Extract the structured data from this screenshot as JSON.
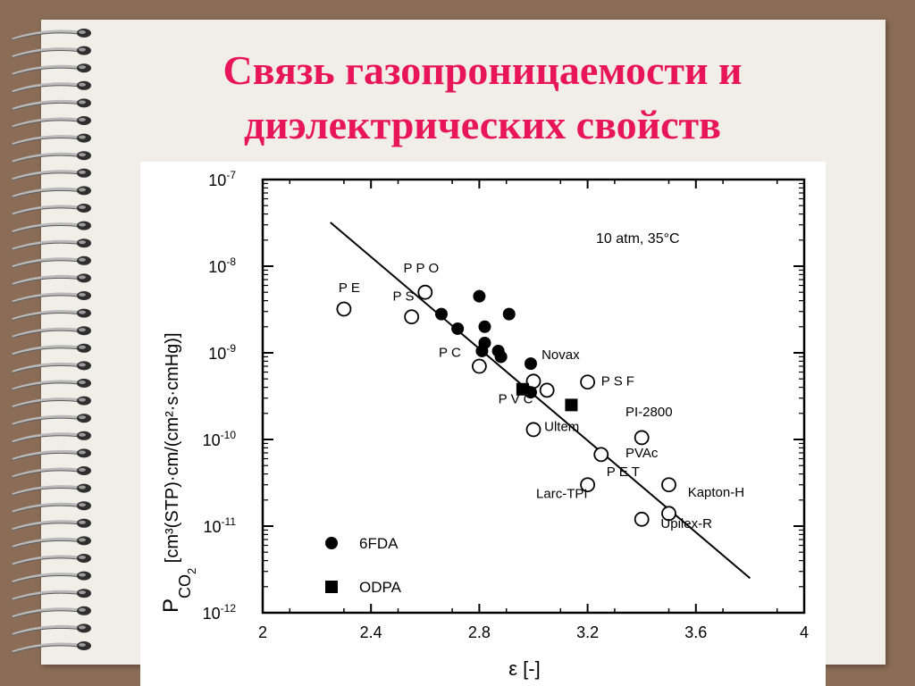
{
  "slide": {
    "title_line1": "Связь газопроницаемости и",
    "title_line2": "диэлектрических свойств",
    "accent_color": "#e8155a",
    "background_color": "#8b6d57",
    "decoration": "spiral-binding"
  },
  "chart_data": {
    "type": "scatter",
    "xlabel": "ε [-]",
    "ylabel_parts": {
      "symbol": "P",
      "subscript": "CO",
      "sub2": "2",
      "units": "[cm³(STP)·cm/(cm²·s·cmHg)]"
    },
    "x_ticks": [
      "2",
      "2.4",
      "2.8",
      "3.2",
      "3.6",
      "4"
    ],
    "x_tick_values": [
      2,
      2.4,
      2.8,
      3.2,
      3.6,
      4
    ],
    "y_ticks": [
      {
        "mantissa": "10",
        "exp": "-7",
        "value": -7
      },
      {
        "mantissa": "10",
        "exp": "-8",
        "value": -8
      },
      {
        "mantissa": "10",
        "exp": "-9",
        "value": -9
      },
      {
        "mantissa": "10",
        "exp": "-10",
        "value": -10
      },
      {
        "mantissa": "10",
        "exp": "-11",
        "value": -11
      },
      {
        "mantissa": "10",
        "exp": "-12",
        "value": -12
      }
    ],
    "xlim": [
      2,
      4
    ],
    "ylim_log10": [
      -12,
      -7
    ],
    "y_scale": "log",
    "condition_label": "10 atm, 35°C",
    "legend": [
      {
        "name": "6FDA",
        "marker": "filled-circle"
      },
      {
        "name": "ODPA",
        "marker": "filled-square"
      }
    ],
    "legend_position": "bottom-left",
    "trend_line": [
      {
        "x": 2.25,
        "y": 3.2e-08
      },
      {
        "x": 3.8,
        "y": 2.5e-12
      }
    ],
    "series": [
      {
        "name": "",
        "marker": "open-circle",
        "points": [
          {
            "x": 2.3,
            "y": 3.2e-09,
            "label": "PE"
          },
          {
            "x": 2.55,
            "y": 2.6e-09,
            "label": "PS"
          },
          {
            "x": 2.6,
            "y": 5e-09,
            "label": "PPO"
          },
          {
            "x": 2.8,
            "y": 7e-10,
            "label": "PC"
          },
          {
            "x": 3.0,
            "y": 4.7e-10,
            "label": ""
          },
          {
            "x": 3.05,
            "y": 3.7e-10,
            "label": ""
          },
          {
            "x": 3.2,
            "y": 4.6e-10,
            "label": "PSF"
          },
          {
            "x": 3.0,
            "y": 1.3e-10,
            "label": "Ultem"
          },
          {
            "x": 3.4,
            "y": 1.05e-10,
            "label": "PI-2800"
          },
          {
            "x": 3.25,
            "y": 6.7e-11,
            "label": "PVAc"
          },
          {
            "x": 3.2,
            "y": 3e-11,
            "label": "Larc-TPI"
          },
          {
            "x": 3.5,
            "y": 3e-11,
            "label": "Kapton-H"
          },
          {
            "x": 3.5,
            "y": 1.4e-11,
            "label": "Upilex-R"
          },
          {
            "x": 3.4,
            "y": 1.2e-11,
            "label": ""
          }
        ]
      },
      {
        "name": "6FDA",
        "marker": "filled-circle",
        "points": [
          {
            "x": 2.8,
            "y": 4.5e-09
          },
          {
            "x": 2.66,
            "y": 2.8e-09
          },
          {
            "x": 2.72,
            "y": 1.9e-09
          },
          {
            "x": 2.82,
            "y": 2e-09
          },
          {
            "x": 2.82,
            "y": 1.3e-09
          },
          {
            "x": 2.81,
            "y": 1.05e-09
          },
          {
            "x": 2.87,
            "y": 1.05e-09
          },
          {
            "x": 2.88,
            "y": 9e-10
          },
          {
            "x": 2.91,
            "y": 2.8e-09
          },
          {
            "x": 2.99,
            "y": 7.5e-10
          },
          {
            "x": 2.99,
            "y": 3.5e-10
          }
        ]
      },
      {
        "name": "ODPA",
        "marker": "filled-square",
        "points": [
          {
            "x": 2.96,
            "y": 3.8e-10
          },
          {
            "x": 3.14,
            "y": 2.5e-10
          }
        ]
      }
    ],
    "text_labels": [
      {
        "text": "PE",
        "x": 2.28,
        "y": 5e-09
      },
      {
        "text": "PS",
        "x": 2.48,
        "y": 4e-09
      },
      {
        "text": "PPO",
        "x": 2.52,
        "y": 8.5e-09
      },
      {
        "text": "PC",
        "x": 2.65,
        "y": 9e-10
      },
      {
        "text": "Novax",
        "x": 3.03,
        "y": 8.5e-10
      },
      {
        "text": "PSF",
        "x": 3.25,
        "y": 4.2e-10
      },
      {
        "text": "PVC",
        "x": 2.87,
        "y": 2.6e-10
      },
      {
        "text": "Ultem",
        "x": 3.04,
        "y": 1.25e-10
      },
      {
        "text": "PI-2800",
        "x": 3.34,
        "y": 1.85e-10
      },
      {
        "text": "PVAc",
        "x": 3.34,
        "y": 6.2e-11
      },
      {
        "text": "PET",
        "x": 3.27,
        "y": 3.8e-11
      },
      {
        "text": "Larc-TPI",
        "x": 3.01,
        "y": 2.1e-11
      },
      {
        "text": "Kapton-H",
        "x": 3.57,
        "y": 2.2e-11
      },
      {
        "text": "Upilex-R",
        "x": 3.47,
        "y": 9.5e-12
      }
    ]
  }
}
